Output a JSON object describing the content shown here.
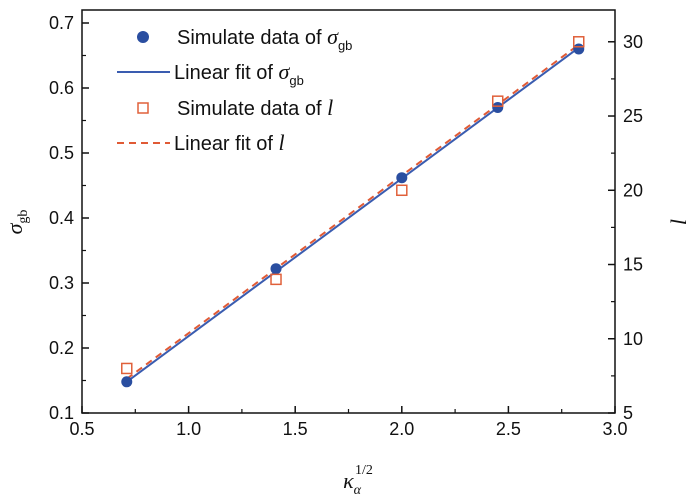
{
  "chart_data": {
    "type": "scatter",
    "x_axis": {
      "label": "κ",
      "label_subscript": "α",
      "label_superscript": "1/2",
      "range": [
        0.5,
        3.0
      ],
      "ticks": [
        "0.5",
        "1.0",
        "1.5",
        "2.0",
        "2.5",
        "3.0"
      ]
    },
    "y_axis_left": {
      "label": "σ",
      "label_subscript": "gb",
      "range": [
        0.1,
        0.72
      ],
      "ticks": [
        "0.1",
        "0.2",
        "0.3",
        "0.4",
        "0.5",
        "0.6",
        "0.7"
      ]
    },
    "y_axis_right": {
      "label": "l",
      "range": [
        5,
        32.14
      ],
      "ticks": [
        "5",
        "10",
        "15",
        "20",
        "25",
        "30"
      ]
    },
    "grid": false,
    "legend_position": "top-left",
    "series": [
      {
        "name": "Simulate data of σgb",
        "legend_label": "Simulate data of ",
        "legend_symbol": "σ",
        "legend_sub": "gb",
        "kind": "points",
        "marker": "filled-circle",
        "axis": "left",
        "color": "#2a4ea0",
        "x": [
          0.71,
          1.41,
          2.0,
          2.45,
          2.83
        ],
        "y": [
          0.148,
          0.322,
          0.462,
          0.57,
          0.66
        ]
      },
      {
        "name": "Linear fit of σgb",
        "legend_label": "Linear fit of ",
        "legend_symbol": "σ",
        "legend_sub": "gb",
        "kind": "line",
        "line_style": "solid",
        "axis": "left",
        "color": "#3a5cb0",
        "x": [
          0.71,
          2.83
        ],
        "y": [
          0.148,
          0.662
        ]
      },
      {
        "name": "Simulate data of l",
        "legend_label": "Simulate data of ",
        "legend_symbol": "l",
        "legend_sub": "",
        "kind": "points",
        "marker": "open-square",
        "axis": "right",
        "color": "#e0603a",
        "x": [
          0.71,
          1.41,
          2.0,
          2.45,
          2.83
        ],
        "y": [
          8,
          14,
          20,
          26,
          30
        ]
      },
      {
        "name": "Linear fit of l",
        "legend_label": "Linear fit of ",
        "legend_symbol": "l",
        "legend_sub": "",
        "kind": "line",
        "line_style": "dashed",
        "axis": "right",
        "color": "#e05a35",
        "x": [
          0.71,
          2.83
        ],
        "y": [
          7.3,
          29.8
        ]
      }
    ]
  }
}
